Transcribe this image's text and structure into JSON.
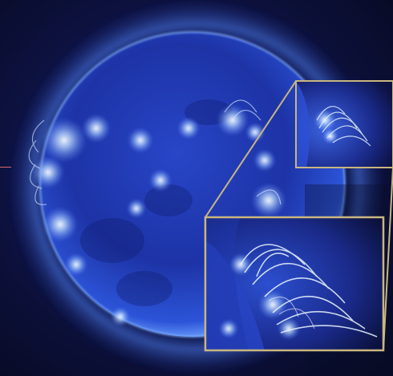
{
  "colors": {
    "space": "#0a0d2a",
    "sun_deep": "#1b2c9b",
    "sun_mid": "#2f52d9",
    "sun_glow": "#6fa3ff",
    "loop_highlight": "#e8f4ff",
    "inset_border": "#c9b680",
    "side_mark": "#d96a6a"
  },
  "image": {
    "subject": "solar-disk-extreme-ultraviolet",
    "insets": [
      {
        "role": "source-region",
        "icon": "zoom-source-box"
      },
      {
        "role": "magnified-view",
        "icon": "zoom-inset-box"
      }
    ]
  }
}
